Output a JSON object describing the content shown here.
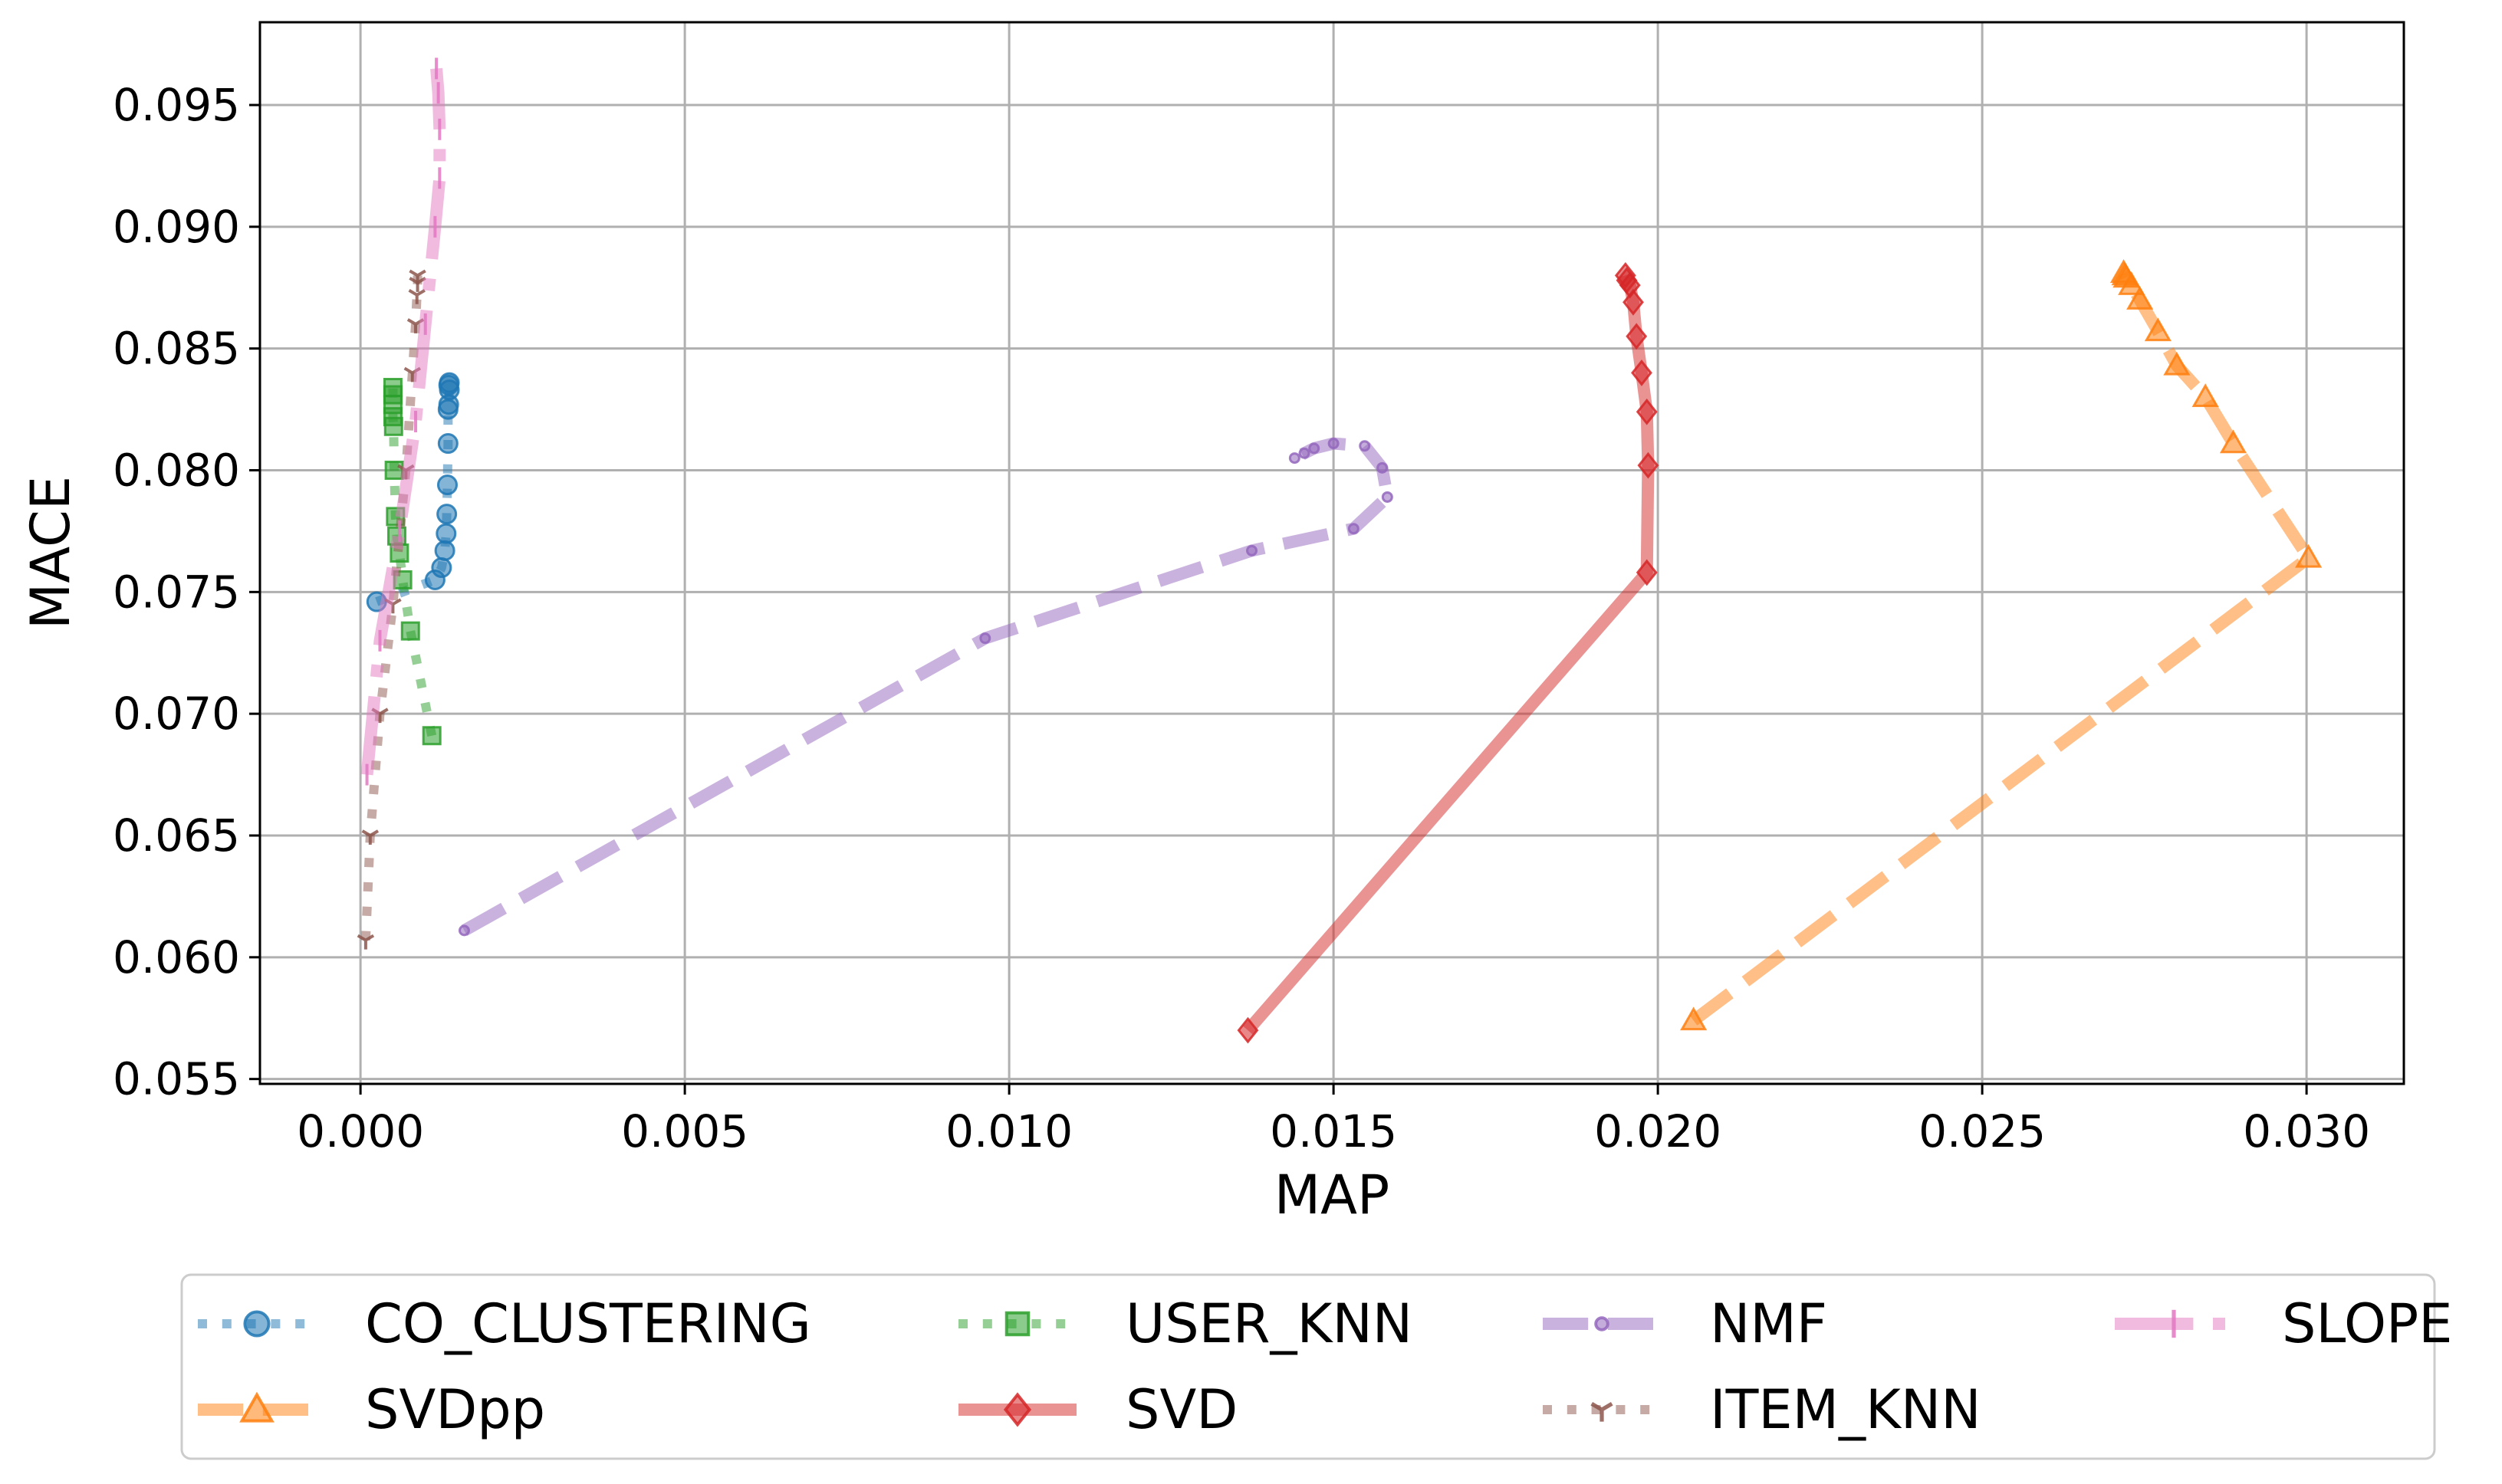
{
  "chart_data": {
    "type": "line",
    "xlabel": "MAP",
    "ylabel": "MACE",
    "xlim": [
      -0.00155,
      0.0315
    ],
    "ylim": [
      0.0548,
      0.0984
    ],
    "xticks": [
      "0.000",
      "0.005",
      "0.010",
      "0.015",
      "0.020",
      "0.025",
      "0.030"
    ],
    "yticks": [
      "0.055",
      "0.060",
      "0.065",
      "0.070",
      "0.075",
      "0.080",
      "0.085",
      "0.090",
      "0.095"
    ],
    "grid": true,
    "legend_position": "bottom",
    "series": [
      {
        "name": "CO_CLUSTERING",
        "color": "#1f77b4",
        "linestyle": "dotted",
        "marker": "circle",
        "linewidth": 12,
        "x": [
          0.00025,
          0.00115,
          0.00125,
          0.0013,
          0.00132,
          0.00133,
          0.00134,
          0.00135,
          0.00135,
          0.00136,
          0.00137,
          0.00136,
          0.00137
        ],
        "y": [
          0.0746,
          0.0755,
          0.076,
          0.0767,
          0.0774,
          0.0782,
          0.0794,
          0.0811,
          0.0825,
          0.0827,
          0.0833,
          0.0835,
          0.0836
        ]
      },
      {
        "name": "SVDpp",
        "color": "#ff7f0e",
        "linestyle": "dashed",
        "marker": "triangle",
        "linewidth": 16,
        "x": [
          0.02055,
          0.03003,
          0.02887,
          0.02844,
          0.028,
          0.02771,
          0.02743,
          0.0273,
          0.02722,
          0.0272,
          0.02718
        ],
        "y": [
          0.0574,
          0.0764,
          0.0811,
          0.083,
          0.0843,
          0.0857,
          0.087,
          0.0876,
          0.0879,
          0.088,
          0.0881
        ]
      },
      {
        "name": "USER_KNN",
        "color": "#2ca02c",
        "linestyle": "dotted",
        "marker": "square",
        "linewidth": 12,
        "x": [
          0.0011,
          0.00077,
          0.00065,
          0.0006,
          0.00056,
          0.00054,
          0.00052,
          0.00051,
          0.0005,
          0.0005,
          0.0005,
          0.0005
        ],
        "y": [
          0.0691,
          0.0734,
          0.0755,
          0.0766,
          0.0773,
          0.0781,
          0.08,
          0.0818,
          0.0822,
          0.0827,
          0.0831,
          0.0834
        ]
      },
      {
        "name": "SVD",
        "color": "#d62728",
        "linestyle": "solid",
        "marker": "diamond",
        "linewidth": 16,
        "x": [
          0.01368,
          0.01983,
          0.01985,
          0.01983,
          0.01975,
          0.01967,
          0.01962,
          0.01957,
          0.01952,
          0.0195
        ],
        "y": [
          0.057,
          0.0758,
          0.0802,
          0.0824,
          0.084,
          0.0855,
          0.0869,
          0.0876,
          0.0878,
          0.088
        ]
      },
      {
        "name": "NMF",
        "color": "#9467bd",
        "linestyle": "dashed",
        "marker": "point",
        "linewidth": 16,
        "x": [
          0.0016,
          0.00963,
          0.01374,
          0.01531,
          0.01583,
          0.01575,
          0.01548,
          0.015,
          0.0147,
          0.01455,
          0.0144
        ],
        "y": [
          0.0611,
          0.0731,
          0.0767,
          0.0776,
          0.0789,
          0.0801,
          0.081,
          0.0811,
          0.0809,
          0.0807,
          0.0805
        ]
      },
      {
        "name": "ITEM_KNN",
        "color": "#8c564b",
        "linestyle": "dotted",
        "marker": "tri_down",
        "linewidth": 12,
        "x": [
          8e-05,
          0.00015,
          0.0003,
          0.0005,
          0.0007,
          0.0008,
          0.00085,
          0.00087,
          0.00088,
          0.00088
        ],
        "y": [
          0.0607,
          0.065,
          0.07,
          0.0745,
          0.08,
          0.084,
          0.086,
          0.0872,
          0.0877,
          0.088
        ]
      },
      {
        "name": "SLOPE",
        "color": "#e377c2",
        "linestyle": "dashdot",
        "marker": "vline",
        "linewidth": 16,
        "x": [
          0.0001,
          0.0003,
          0.0006,
          0.00085,
          0.001,
          0.00115,
          0.00122,
          0.00122,
          0.0012,
          0.00117
        ],
        "y": [
          0.0675,
          0.073,
          0.0775,
          0.082,
          0.086,
          0.09,
          0.092,
          0.094,
          0.0955,
          0.0965
        ]
      }
    ]
  }
}
